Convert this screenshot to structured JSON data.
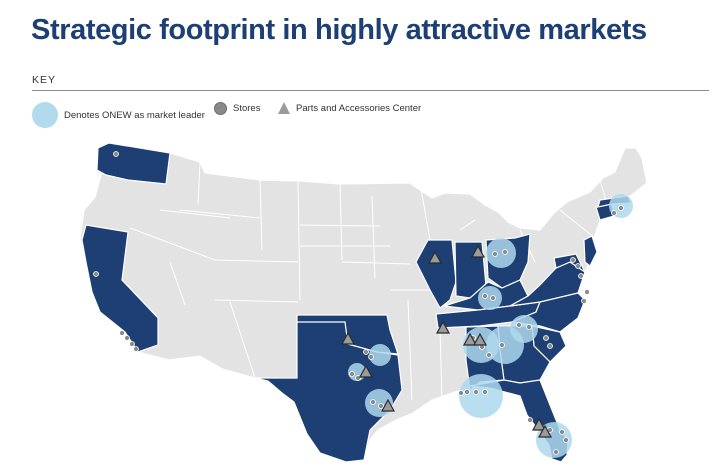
{
  "title": "Strategic footprint in highly attractive markets",
  "key": {
    "heading": "KEY",
    "legend": [
      {
        "symbol": "leader-circle-icon",
        "label": "Denotes ONEW as market leader"
      },
      {
        "symbol": "store-dot-icon",
        "label": "Stores"
      },
      {
        "symbol": "triangle-icon",
        "label": "Parts and Accessories Center"
      }
    ]
  },
  "colors": {
    "title": "#1d3f74",
    "footprint_state": "#1d3f74",
    "other_state": "#e3e3e3",
    "state_border": "#ffffff",
    "market_leader": "#add8ec",
    "store": "#8a8a8a",
    "parts_center": "#9b9b9b"
  },
  "footprint_states": [
    "Washington",
    "California",
    "Texas",
    "Oklahoma",
    "Illinois",
    "Indiana",
    "Ohio",
    "Kentucky",
    "Tennessee",
    "Georgia",
    "Florida",
    "Alabama",
    "South Carolina",
    "North Carolina",
    "Virginia",
    "Maryland",
    "New Jersey",
    "Connecticut",
    "Rhode Island",
    "Massachusetts"
  ],
  "parts_center_states": [
    "Illinois",
    "Indiana",
    "Tennessee",
    "Georgia",
    "Oklahoma",
    "Texas",
    "Florida"
  ]
}
